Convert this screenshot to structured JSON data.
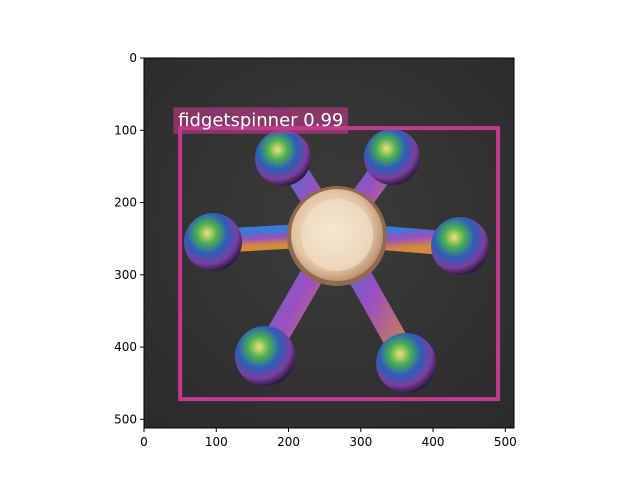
{
  "figure": {
    "image_description": "fidget spinner on dark surface",
    "x_range": [
      0,
      512
    ],
    "y_range": [
      512,
      0
    ],
    "x_ticks": [
      {
        "value": 0,
        "label": "0"
      },
      {
        "value": 100,
        "label": "100"
      },
      {
        "value": 200,
        "label": "200"
      },
      {
        "value": 300,
        "label": "300"
      },
      {
        "value": 400,
        "label": "400"
      },
      {
        "value": 500,
        "label": "500"
      }
    ],
    "y_ticks": [
      {
        "value": 0,
        "label": "0"
      },
      {
        "value": 100,
        "label": "100"
      },
      {
        "value": 200,
        "label": "200"
      },
      {
        "value": 300,
        "label": "300"
      },
      {
        "value": 400,
        "label": "400"
      },
      {
        "value": 500,
        "label": "500"
      }
    ]
  },
  "detection": {
    "label": "fidgetspinner 0.99",
    "class": "fidgetspinner",
    "score": 0.99,
    "box": {
      "x1": 50,
      "y1": 97,
      "x2": 490,
      "y2": 472
    },
    "color": "#c23b8a"
  }
}
